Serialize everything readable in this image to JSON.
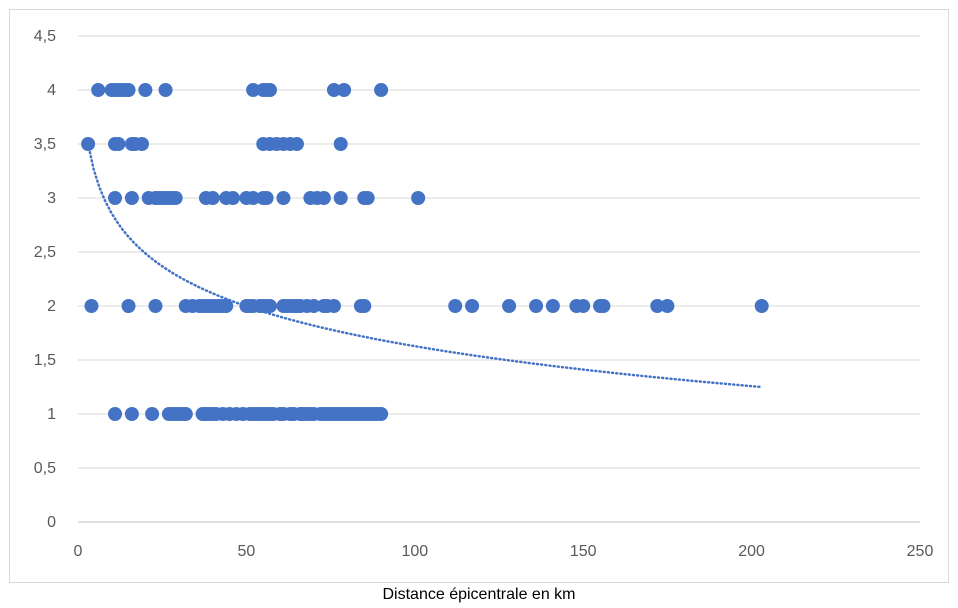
{
  "chart_data": {
    "type": "scatter",
    "title": "",
    "xlabel": "Distance épicentrale en km",
    "ylabel": "",
    "xlim": [
      0,
      250
    ],
    "ylim": [
      0,
      4.5
    ],
    "x_ticks": [
      "0",
      "50",
      "100",
      "150",
      "200",
      "250"
    ],
    "y_ticks": [
      "0",
      "0,5",
      "1",
      "1,5",
      "2",
      "2,5",
      "3",
      "3,5",
      "4",
      "4,5"
    ],
    "grid": "horizontal",
    "legend": "none",
    "colors": {
      "marker": "#4472C4",
      "trendline": "#4472C4",
      "grid": "#d9d9d9",
      "axis": "#bfbfbf"
    },
    "series": [
      {
        "x": [
          6,
          10,
          11,
          12,
          13,
          14,
          15,
          20,
          26,
          52,
          55,
          56,
          57,
          76,
          79,
          90,
          3,
          11,
          12,
          16,
          17,
          19,
          55,
          57,
          59,
          61,
          63,
          65,
          78,
          11,
          16,
          21,
          23,
          24,
          25,
          26,
          27,
          28,
          29,
          38,
          40,
          44,
          46,
          50,
          52,
          55,
          56,
          61,
          69,
          71,
          73,
          78,
          85,
          86,
          101,
          4,
          15,
          23,
          32,
          34,
          36,
          37,
          38,
          39,
          40,
          41,
          42,
          43,
          44,
          50,
          51,
          52,
          54,
          55,
          56,
          57,
          61,
          62,
          63,
          64,
          65,
          66,
          68,
          70,
          73,
          74,
          76,
          84,
          85,
          112,
          117,
          128,
          136,
          141,
          148,
          150,
          155,
          156,
          172,
          175,
          203,
          11,
          16,
          22,
          27,
          28,
          29,
          30,
          31,
          32,
          37,
          38,
          39,
          40,
          41,
          43,
          45,
          47,
          49,
          51,
          52,
          53,
          54,
          55,
          56,
          57,
          58,
          60,
          61,
          63,
          64,
          66,
          67,
          68,
          69,
          70,
          72,
          73,
          74,
          75,
          76,
          77,
          78,
          79,
          80,
          81,
          82,
          83,
          84,
          85,
          86,
          87,
          88,
          89,
          90
        ],
        "y": [
          4,
          4,
          4,
          4,
          4,
          4,
          4,
          4,
          4,
          4,
          4,
          4,
          4,
          4,
          4,
          4,
          3.5,
          3.5,
          3.5,
          3.5,
          3.5,
          3.5,
          3.5,
          3.5,
          3.5,
          3.5,
          3.5,
          3.5,
          3.5,
          3,
          3,
          3,
          3,
          3,
          3,
          3,
          3,
          3,
          3,
          3,
          3,
          3,
          3,
          3,
          3,
          3,
          3,
          3,
          3,
          3,
          3,
          3,
          3,
          3,
          3,
          2,
          2,
          2,
          2,
          2,
          2,
          2,
          2,
          2,
          2,
          2,
          2,
          2,
          2,
          2,
          2,
          2,
          2,
          2,
          2,
          2,
          2,
          2,
          2,
          2,
          2,
          2,
          2,
          2,
          2,
          2,
          2,
          2,
          2,
          2,
          2,
          2,
          2,
          2,
          2,
          2,
          2,
          2,
          2,
          2,
          2,
          1,
          1,
          1,
          1,
          1,
          1,
          1,
          1,
          1,
          1,
          1,
          1,
          1,
          1,
          1,
          1,
          1,
          1,
          1,
          1,
          1,
          1,
          1,
          1,
          1,
          1,
          1,
          1,
          1,
          1,
          1,
          1,
          1,
          1,
          1,
          1,
          1,
          1,
          1,
          1,
          1,
          1,
          1,
          1,
          1,
          1,
          1,
          1,
          1,
          1,
          1,
          1,
          1,
          1
        ]
      }
    ],
    "trendline": {
      "type": "logarithmic",
      "style": "dotted",
      "x_range": [
        3,
        203
      ],
      "points": [
        [
          3,
          3.5
        ],
        [
          10,
          2.8
        ],
        [
          20,
          2.42
        ],
        [
          35,
          2.07
        ],
        [
          50,
          1.9
        ],
        [
          75,
          1.74
        ],
        [
          100,
          1.62
        ],
        [
          125,
          1.51
        ],
        [
          150,
          1.42
        ],
        [
          175,
          1.33
        ],
        [
          203,
          1.25
        ]
      ]
    }
  }
}
